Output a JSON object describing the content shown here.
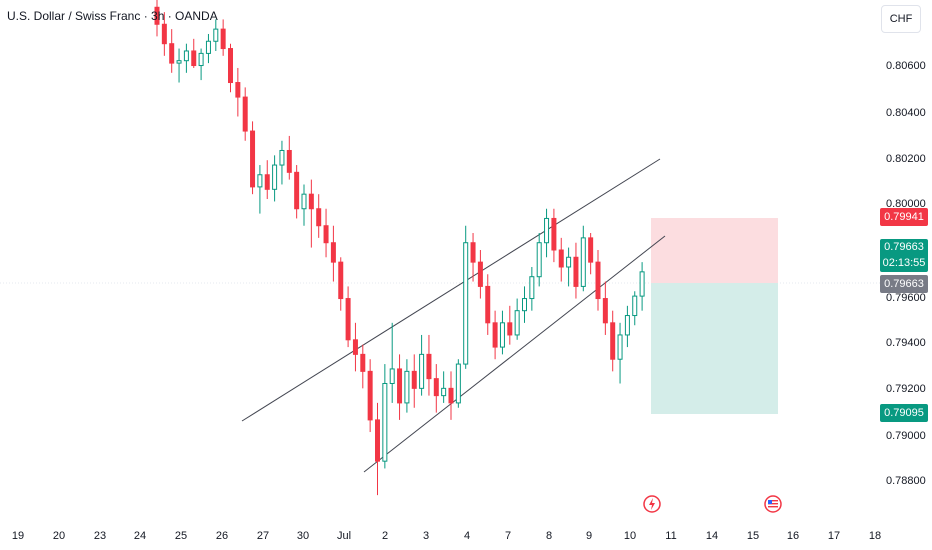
{
  "title": "U.S. Dollar / Swiss Franc · 3h · OANDA",
  "currency_button": "CHF",
  "y_axis_labels": [
    "0.80600",
    "0.80400",
    "0.80200",
    "0.80000",
    "0.79600",
    "0.79400",
    "0.79200",
    "0.79000",
    "0.78800"
  ],
  "x_axis_labels": [
    "19",
    "20",
    "23",
    "24",
    "25",
    "26",
    "27",
    "30",
    "Jul",
    "2",
    "3",
    "4",
    "7",
    "8",
    "9",
    "10",
    "11",
    "14",
    "15",
    "16",
    "17",
    "18"
  ],
  "price_tags": {
    "stop_loss": "0.79941",
    "current_price": "0.79663",
    "countdown": "02:13:55",
    "entry": "0.79663",
    "take_profit": "0.79095"
  },
  "icons": [
    "earnings-flash-icon",
    "us-flag-event-icon"
  ],
  "colors": {
    "up": "#089981",
    "down": "#f23645",
    "risk_zone": "#fcdde0",
    "reward_zone": "#d4ede9"
  },
  "chart_data": {
    "type": "candlestick",
    "symbol": "USDCHF",
    "interval": "3h",
    "source": "OANDA",
    "ylim": [
      0.7872,
      0.8078
    ],
    "position": {
      "side": "short",
      "entry": 0.79663,
      "stop": 0.79941,
      "target": 0.79095
    },
    "channel_upper": [
      [
        0.7908,
        0.8019
      ]
    ],
    "candles": [
      [
        0.8075,
        0.808,
        0.8063,
        0.8068
      ],
      [
        0.8068,
        0.8073,
        0.8055,
        0.806
      ],
      [
        0.806,
        0.8066,
        0.8048,
        0.8052
      ],
      [
        0.8052,
        0.8058,
        0.8044,
        0.8053
      ],
      [
        0.8053,
        0.806,
        0.8048,
        0.8057
      ],
      [
        0.8057,
        0.8062,
        0.805,
        0.8051
      ],
      [
        0.8051,
        0.8058,
        0.8045,
        0.8056
      ],
      [
        0.8056,
        0.8064,
        0.8052,
        0.8061
      ],
      [
        0.8061,
        0.807,
        0.8057,
        0.8066
      ],
      [
        0.8066,
        0.807,
        0.8055,
        0.8058
      ],
      [
        0.8058,
        0.806,
        0.804,
        0.8044
      ],
      [
        0.8044,
        0.805,
        0.803,
        0.8038
      ],
      [
        0.8038,
        0.8042,
        0.802,
        0.8024
      ],
      [
        0.8024,
        0.8028,
        0.7998,
        0.8001
      ],
      [
        0.8001,
        0.801,
        0.799,
        0.8006
      ],
      [
        0.8006,
        0.8012,
        0.7996,
        0.8
      ],
      [
        0.8,
        0.8014,
        0.7995,
        0.801
      ],
      [
        0.801,
        0.802,
        0.8002,
        0.8016
      ],
      [
        0.8016,
        0.8022,
        0.8004,
        0.8007
      ],
      [
        0.8007,
        0.801,
        0.7988,
        0.7992
      ],
      [
        0.7992,
        0.8002,
        0.7985,
        0.7998
      ],
      [
        0.7998,
        0.8004,
        0.7976,
        0.7992
      ],
      [
        0.7992,
        0.7998,
        0.798,
        0.7985
      ],
      [
        0.7985,
        0.7992,
        0.7972,
        0.7978
      ],
      [
        0.7978,
        0.7985,
        0.7962,
        0.797
      ],
      [
        0.797,
        0.7972,
        0.795,
        0.7955
      ],
      [
        0.7955,
        0.796,
        0.7935,
        0.7938
      ],
      [
        0.7938,
        0.7945,
        0.7925,
        0.7932
      ],
      [
        0.7932,
        0.7936,
        0.7918,
        0.7925
      ],
      [
        0.7925,
        0.793,
        0.79,
        0.7905
      ],
      [
        0.7905,
        0.7912,
        0.7874,
        0.7888
      ],
      [
        0.7888,
        0.7928,
        0.7885,
        0.792
      ],
      [
        0.792,
        0.7945,
        0.7912,
        0.7926
      ],
      [
        0.7926,
        0.7932,
        0.7905,
        0.7912
      ],
      [
        0.7912,
        0.793,
        0.7908,
        0.7925
      ],
      [
        0.7925,
        0.7932,
        0.791,
        0.7918
      ],
      [
        0.7918,
        0.794,
        0.7915,
        0.7932
      ],
      [
        0.7932,
        0.794,
        0.7915,
        0.7922
      ],
      [
        0.7922,
        0.7928,
        0.7908,
        0.7915
      ],
      [
        0.7915,
        0.7925,
        0.7912,
        0.7918
      ],
      [
        0.7918,
        0.7925,
        0.7905,
        0.7912
      ],
      [
        0.7912,
        0.793,
        0.791,
        0.7928
      ],
      [
        0.7928,
        0.7985,
        0.7926,
        0.7978
      ],
      [
        0.7978,
        0.7982,
        0.7962,
        0.797
      ],
      [
        0.797,
        0.7975,
        0.7955,
        0.796
      ],
      [
        0.796,
        0.7965,
        0.794,
        0.7945
      ],
      [
        0.7945,
        0.795,
        0.793,
        0.7935
      ],
      [
        0.7935,
        0.795,
        0.7932,
        0.7945
      ],
      [
        0.7945,
        0.7952,
        0.7936,
        0.794
      ],
      [
        0.794,
        0.7955,
        0.7938,
        0.795
      ],
      [
        0.795,
        0.796,
        0.7945,
        0.7955
      ],
      [
        0.7955,
        0.7968,
        0.795,
        0.7964
      ],
      [
        0.7964,
        0.7982,
        0.796,
        0.7978
      ],
      [
        0.7978,
        0.7992,
        0.7972,
        0.7988
      ],
      [
        0.7988,
        0.7992,
        0.797,
        0.7975
      ],
      [
        0.7975,
        0.798,
        0.7962,
        0.7968
      ],
      [
        0.7968,
        0.7976,
        0.796,
        0.7972
      ],
      [
        0.7972,
        0.7978,
        0.7955,
        0.796
      ],
      [
        0.796,
        0.7985,
        0.7958,
        0.798
      ],
      [
        0.798,
        0.7982,
        0.7965,
        0.797
      ],
      [
        0.797,
        0.7975,
        0.795,
        0.7955
      ],
      [
        0.7955,
        0.7962,
        0.794,
        0.7945
      ],
      [
        0.7945,
        0.795,
        0.7925,
        0.793
      ],
      [
        0.793,
        0.7945,
        0.792,
        0.794
      ],
      [
        0.794,
        0.7952,
        0.7935,
        0.7948
      ],
      [
        0.7948,
        0.7958,
        0.7944,
        0.7956
      ],
      [
        0.7956,
        0.797,
        0.795,
        0.7966
      ]
    ]
  }
}
